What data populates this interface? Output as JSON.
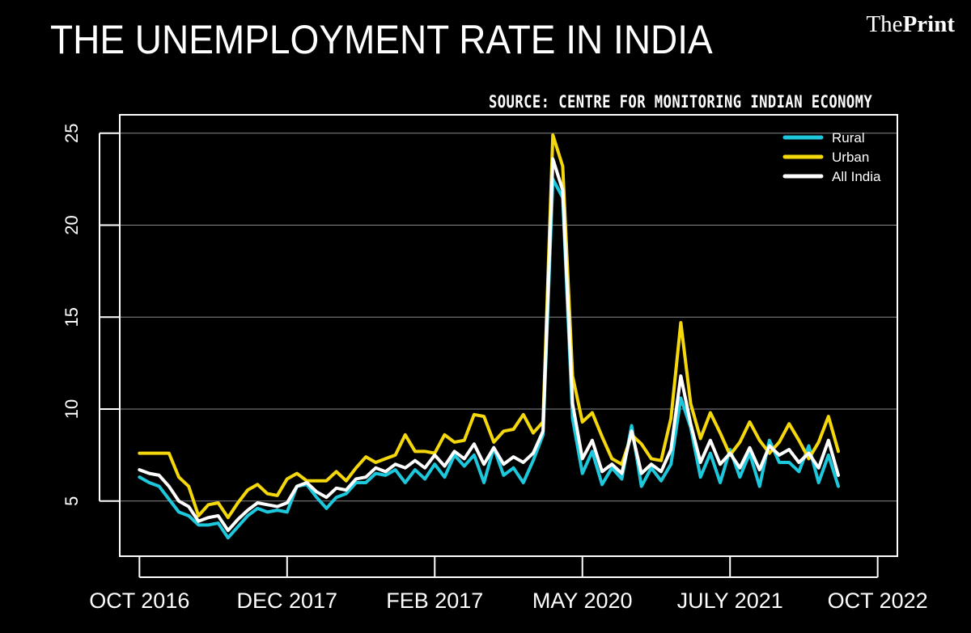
{
  "header": {
    "title": "THE UNEMPLOYMENT RATE IN INDIA",
    "brand_the": "The",
    "brand_print": "Print",
    "source": "SOURCE: CENTRE FOR MONITORING INDIAN ECONOMY"
  },
  "chart_data": {
    "type": "line",
    "title": "THE UNEMPLOYMENT RATE IN INDIA",
    "xlabel": "",
    "ylabel": "",
    "ylim": [
      2,
      26
    ],
    "yticks": [
      5,
      10,
      15,
      20,
      25
    ],
    "ytick_labels": [
      "5",
      "10",
      "15",
      "20",
      "25"
    ],
    "xlim": [
      -2,
      77
    ],
    "xticks": [
      0,
      15,
      30,
      45,
      60,
      75
    ],
    "xtick_labels": [
      "OCT 2016",
      "DEC 2017",
      "FEB 2017",
      "MAY 2020",
      "JULY 2021",
      "OCT 2022"
    ],
    "grid": "horizontal",
    "legend_position": "top-right",
    "series": [
      {
        "name": "Rural",
        "color": "#1ec8dc",
        "values": [
          6.3,
          6.0,
          5.8,
          5.1,
          4.4,
          4.2,
          3.7,
          3.7,
          3.8,
          3.0,
          3.6,
          4.2,
          4.6,
          4.4,
          4.5,
          4.4,
          5.8,
          5.9,
          5.2,
          4.6,
          5.2,
          5.4,
          6.0,
          6.0,
          6.5,
          6.4,
          6.7,
          6.0,
          6.7,
          6.2,
          7.0,
          6.3,
          7.5,
          6.9,
          7.5,
          6.0,
          7.9,
          6.4,
          6.8,
          6.0,
          7.2,
          8.6,
          22.5,
          21.5,
          9.5,
          6.5,
          7.7,
          5.9,
          6.8,
          6.2,
          9.1,
          5.8,
          6.8,
          6.1,
          7.0,
          10.6,
          9.0,
          6.3,
          7.6,
          6.0,
          7.8,
          6.3,
          7.6,
          5.8,
          8.3,
          7.1,
          7.1,
          6.6,
          8.0,
          6.0,
          7.5,
          5.8
        ]
      },
      {
        "name": "Urban",
        "color": "#f5d80c",
        "values": [
          7.6,
          7.6,
          7.6,
          7.6,
          6.3,
          5.8,
          4.2,
          4.8,
          4.9,
          4.1,
          4.9,
          5.6,
          5.9,
          5.4,
          5.3,
          6.2,
          6.5,
          6.1,
          6.1,
          6.1,
          6.6,
          6.1,
          6.8,
          7.4,
          7.1,
          7.3,
          7.5,
          8.6,
          7.7,
          7.7,
          7.6,
          8.6,
          8.2,
          8.3,
          9.7,
          9.6,
          8.2,
          8.8,
          8.9,
          9.7,
          8.7,
          9.3,
          24.9,
          23.2,
          11.8,
          9.3,
          9.8,
          8.5,
          7.3,
          7.0,
          8.6,
          8.1,
          7.3,
          7.2,
          9.5,
          14.7,
          10.3,
          8.4,
          9.8,
          8.7,
          7.5,
          8.2,
          9.3,
          8.3,
          7.6,
          8.2,
          9.2,
          8.3,
          7.3,
          8.2,
          9.6,
          7.7
        ]
      },
      {
        "name": "All India",
        "color": "#ffffff",
        "values": [
          6.7,
          6.5,
          6.4,
          5.8,
          5.0,
          4.7,
          3.9,
          4.1,
          4.2,
          3.4,
          4.0,
          4.5,
          4.9,
          4.8,
          4.7,
          4.9,
          5.8,
          6.0,
          5.5,
          5.2,
          5.7,
          5.6,
          6.2,
          6.3,
          6.8,
          6.6,
          7.0,
          6.8,
          7.2,
          6.8,
          7.5,
          6.9,
          7.7,
          7.3,
          8.1,
          7.0,
          7.9,
          7.0,
          7.4,
          7.1,
          7.6,
          8.8,
          23.6,
          21.9,
          10.3,
          7.3,
          8.3,
          6.6,
          7.0,
          6.5,
          8.8,
          6.5,
          7.0,
          6.6,
          7.8,
          11.8,
          9.2,
          7.1,
          8.3,
          7.0,
          7.6,
          6.8,
          7.9,
          6.7,
          8.0,
          7.5,
          7.8,
          7.1,
          7.6,
          6.8,
          8.3,
          6.4
        ]
      }
    ]
  }
}
